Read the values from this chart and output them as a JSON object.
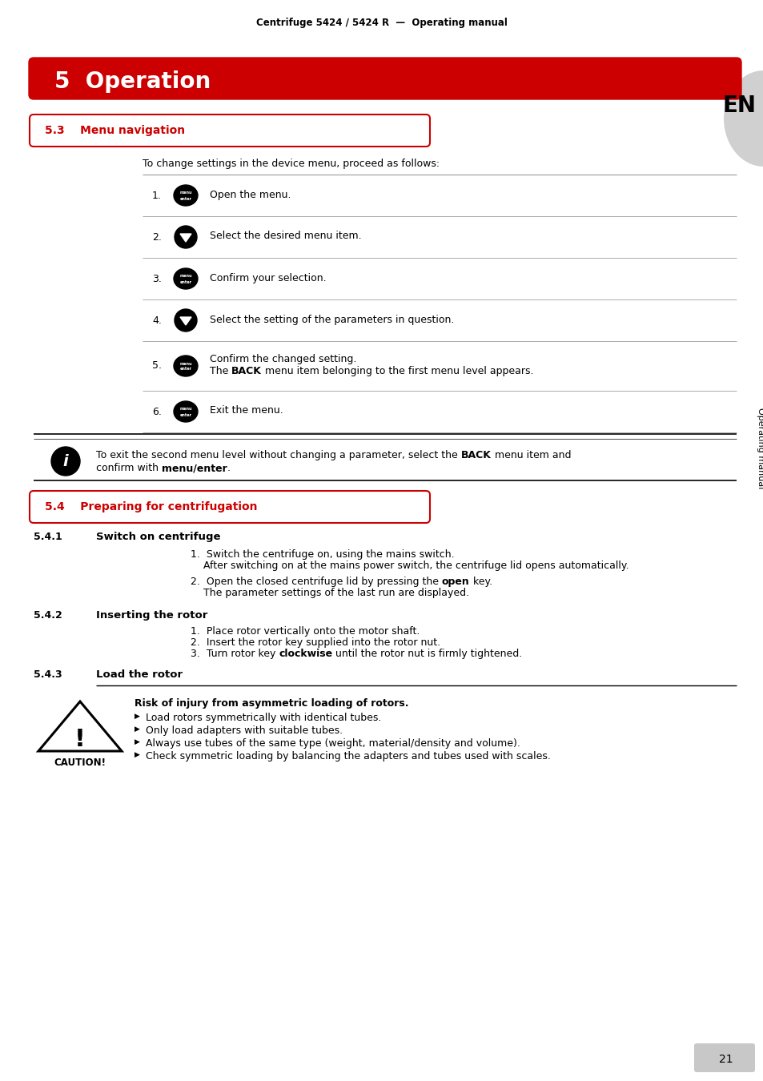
{
  "header": "Centrifuge 5424 / 5424 R  —  Operating manual",
  "chapter_title": "5  Operation",
  "section_53": "5.3    Menu navigation",
  "section_54": "5.4    Preparing for centrifugation",
  "section_541_label": "5.4.1",
  "section_541_title": "Switch on centrifuge",
  "section_542_label": "5.4.2",
  "section_542_title": "Inserting the rotor",
  "section_543_label": "5.4.3",
  "section_543_title": "Load the rotor",
  "en_label": "EN",
  "side_label": "Operating manual",
  "page_number": "21",
  "bg_color": "#ffffff",
  "red_color": "#cc0000",
  "black_color": "#000000",
  "line_color": "#999999",
  "heavy_line_color": "#333333"
}
